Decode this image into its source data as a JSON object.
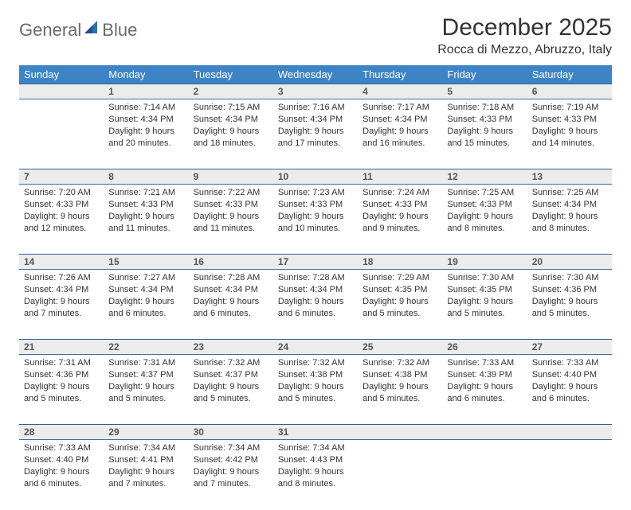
{
  "brand": {
    "part1": "General",
    "part2": "Blue"
  },
  "brand_colors": {
    "text": "#6a6a6a",
    "accent": "#2f6fb3",
    "triangle": "#1f4f8f"
  },
  "title": "December 2025",
  "location": "Rocca di Mezzo, Abruzzo, Italy",
  "header_bg": "#3d84c6",
  "header_fg": "#ffffff",
  "daynum_bg": "#ececec",
  "row_border": "#2f5f95",
  "weekdays": [
    "Sunday",
    "Monday",
    "Tuesday",
    "Wednesday",
    "Thursday",
    "Friday",
    "Saturday"
  ],
  "weeks": [
    [
      {
        "n": "",
        "lines": []
      },
      {
        "n": "1",
        "lines": [
          "Sunrise: 7:14 AM",
          "Sunset: 4:34 PM",
          "Daylight: 9 hours",
          "and 20 minutes."
        ]
      },
      {
        "n": "2",
        "lines": [
          "Sunrise: 7:15 AM",
          "Sunset: 4:34 PM",
          "Daylight: 9 hours",
          "and 18 minutes."
        ]
      },
      {
        "n": "3",
        "lines": [
          "Sunrise: 7:16 AM",
          "Sunset: 4:34 PM",
          "Daylight: 9 hours",
          "and 17 minutes."
        ]
      },
      {
        "n": "4",
        "lines": [
          "Sunrise: 7:17 AM",
          "Sunset: 4:34 PM",
          "Daylight: 9 hours",
          "and 16 minutes."
        ]
      },
      {
        "n": "5",
        "lines": [
          "Sunrise: 7:18 AM",
          "Sunset: 4:33 PM",
          "Daylight: 9 hours",
          "and 15 minutes."
        ]
      },
      {
        "n": "6",
        "lines": [
          "Sunrise: 7:19 AM",
          "Sunset: 4:33 PM",
          "Daylight: 9 hours",
          "and 14 minutes."
        ]
      }
    ],
    [
      {
        "n": "7",
        "lines": [
          "Sunrise: 7:20 AM",
          "Sunset: 4:33 PM",
          "Daylight: 9 hours",
          "and 12 minutes."
        ]
      },
      {
        "n": "8",
        "lines": [
          "Sunrise: 7:21 AM",
          "Sunset: 4:33 PM",
          "Daylight: 9 hours",
          "and 11 minutes."
        ]
      },
      {
        "n": "9",
        "lines": [
          "Sunrise: 7:22 AM",
          "Sunset: 4:33 PM",
          "Daylight: 9 hours",
          "and 11 minutes."
        ]
      },
      {
        "n": "10",
        "lines": [
          "Sunrise: 7:23 AM",
          "Sunset: 4:33 PM",
          "Daylight: 9 hours",
          "and 10 minutes."
        ]
      },
      {
        "n": "11",
        "lines": [
          "Sunrise: 7:24 AM",
          "Sunset: 4:33 PM",
          "Daylight: 9 hours",
          "and 9 minutes."
        ]
      },
      {
        "n": "12",
        "lines": [
          "Sunrise: 7:25 AM",
          "Sunset: 4:33 PM",
          "Daylight: 9 hours",
          "and 8 minutes."
        ]
      },
      {
        "n": "13",
        "lines": [
          "Sunrise: 7:25 AM",
          "Sunset: 4:34 PM",
          "Daylight: 9 hours",
          "and 8 minutes."
        ]
      }
    ],
    [
      {
        "n": "14",
        "lines": [
          "Sunrise: 7:26 AM",
          "Sunset: 4:34 PM",
          "Daylight: 9 hours",
          "and 7 minutes."
        ]
      },
      {
        "n": "15",
        "lines": [
          "Sunrise: 7:27 AM",
          "Sunset: 4:34 PM",
          "Daylight: 9 hours",
          "and 6 minutes."
        ]
      },
      {
        "n": "16",
        "lines": [
          "Sunrise: 7:28 AM",
          "Sunset: 4:34 PM",
          "Daylight: 9 hours",
          "and 6 minutes."
        ]
      },
      {
        "n": "17",
        "lines": [
          "Sunrise: 7:28 AM",
          "Sunset: 4:34 PM",
          "Daylight: 9 hours",
          "and 6 minutes."
        ]
      },
      {
        "n": "18",
        "lines": [
          "Sunrise: 7:29 AM",
          "Sunset: 4:35 PM",
          "Daylight: 9 hours",
          "and 5 minutes."
        ]
      },
      {
        "n": "19",
        "lines": [
          "Sunrise: 7:30 AM",
          "Sunset: 4:35 PM",
          "Daylight: 9 hours",
          "and 5 minutes."
        ]
      },
      {
        "n": "20",
        "lines": [
          "Sunrise: 7:30 AM",
          "Sunset: 4:36 PM",
          "Daylight: 9 hours",
          "and 5 minutes."
        ]
      }
    ],
    [
      {
        "n": "21",
        "lines": [
          "Sunrise: 7:31 AM",
          "Sunset: 4:36 PM",
          "Daylight: 9 hours",
          "and 5 minutes."
        ]
      },
      {
        "n": "22",
        "lines": [
          "Sunrise: 7:31 AM",
          "Sunset: 4:37 PM",
          "Daylight: 9 hours",
          "and 5 minutes."
        ]
      },
      {
        "n": "23",
        "lines": [
          "Sunrise: 7:32 AM",
          "Sunset: 4:37 PM",
          "Daylight: 9 hours",
          "and 5 minutes."
        ]
      },
      {
        "n": "24",
        "lines": [
          "Sunrise: 7:32 AM",
          "Sunset: 4:38 PM",
          "Daylight: 9 hours",
          "and 5 minutes."
        ]
      },
      {
        "n": "25",
        "lines": [
          "Sunrise: 7:32 AM",
          "Sunset: 4:38 PM",
          "Daylight: 9 hours",
          "and 5 minutes."
        ]
      },
      {
        "n": "26",
        "lines": [
          "Sunrise: 7:33 AM",
          "Sunset: 4:39 PM",
          "Daylight: 9 hours",
          "and 6 minutes."
        ]
      },
      {
        "n": "27",
        "lines": [
          "Sunrise: 7:33 AM",
          "Sunset: 4:40 PM",
          "Daylight: 9 hours",
          "and 6 minutes."
        ]
      }
    ],
    [
      {
        "n": "28",
        "lines": [
          "Sunrise: 7:33 AM",
          "Sunset: 4:40 PM",
          "Daylight: 9 hours",
          "and 6 minutes."
        ]
      },
      {
        "n": "29",
        "lines": [
          "Sunrise: 7:34 AM",
          "Sunset: 4:41 PM",
          "Daylight: 9 hours",
          "and 7 minutes."
        ]
      },
      {
        "n": "30",
        "lines": [
          "Sunrise: 7:34 AM",
          "Sunset: 4:42 PM",
          "Daylight: 9 hours",
          "and 7 minutes."
        ]
      },
      {
        "n": "31",
        "lines": [
          "Sunrise: 7:34 AM",
          "Sunset: 4:43 PM",
          "Daylight: 9 hours",
          "and 8 minutes."
        ]
      },
      {
        "n": "",
        "lines": []
      },
      {
        "n": "",
        "lines": []
      },
      {
        "n": "",
        "lines": []
      }
    ]
  ]
}
